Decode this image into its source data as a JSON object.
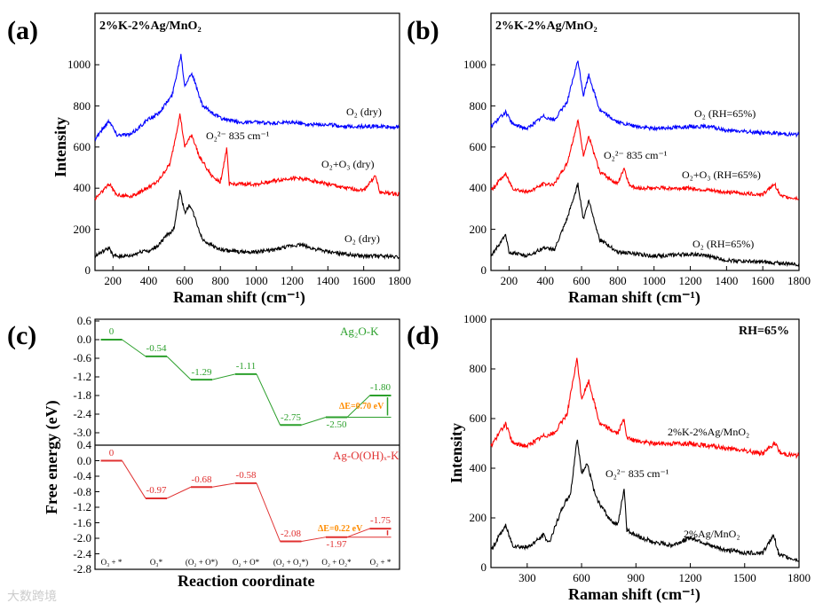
{
  "chart_data": [
    {
      "panel": "(a)",
      "type": "line",
      "title": "2%K-2%Ag/MnO₂",
      "xlabel": "Raman shift (cm⁻¹)",
      "ylabel": "Intensity",
      "xlim": [
        100,
        1800
      ],
      "ylim": [
        0,
        1250
      ],
      "xticks": [
        200,
        400,
        600,
        800,
        1000,
        1200,
        1400,
        1600,
        1800
      ],
      "yticks": [
        0,
        200,
        400,
        600,
        800,
        1000
      ],
      "annotations": [
        "O₂²⁻ 835 cm⁻¹"
      ],
      "series": [
        {
          "name": "O₂ (dry)",
          "color": "#0000ff",
          "x": [
            100,
            180,
            220,
            300,
            390,
            450,
            530,
            580,
            600,
            640,
            700,
            800,
            900,
            1000,
            1100,
            1200,
            1300,
            1400,
            1500,
            1600,
            1700,
            1800
          ],
          "y": [
            640,
            730,
            660,
            660,
            730,
            760,
            850,
            1050,
            900,
            960,
            800,
            740,
            720,
            720,
            715,
            720,
            710,
            710,
            700,
            700,
            700,
            695
          ]
        },
        {
          "name": "O₂+O₃ (dry)",
          "color": "#ff0000",
          "x": [
            100,
            180,
            220,
            300,
            390,
            450,
            520,
            575,
            600,
            640,
            680,
            750,
            800,
            835,
            850,
            900,
            1000,
            1200,
            1300,
            1400,
            1500,
            1600,
            1665,
            1690,
            1800
          ],
          "y": [
            350,
            420,
            370,
            360,
            400,
            430,
            520,
            760,
            600,
            660,
            560,
            460,
            430,
            590,
            420,
            420,
            420,
            450,
            440,
            420,
            400,
            390,
            460,
            380,
            370
          ]
        },
        {
          "name": "O₂ (dry)",
          "color": "#000000",
          "x": [
            100,
            180,
            200,
            300,
            380,
            400,
            450,
            500,
            540,
            575,
            600,
            630,
            660,
            700,
            800,
            900,
            1000,
            1100,
            1200,
            1250,
            1300,
            1400,
            1500,
            1600,
            1700,
            1800
          ],
          "y": [
            70,
            110,
            70,
            70,
            100,
            90,
            120,
            170,
            200,
            390,
            280,
            320,
            250,
            150,
            100,
            90,
            90,
            100,
            120,
            125,
            110,
            90,
            80,
            70,
            70,
            65
          ]
        }
      ]
    },
    {
      "panel": "(b)",
      "type": "line",
      "title": "2%K-2%Ag/MnO₂",
      "xlabel": "Raman shift (cm⁻¹)",
      "ylabel": "",
      "xlim": [
        100,
        1800
      ],
      "ylim": [
        0,
        1250
      ],
      "xticks": [
        200,
        400,
        600,
        800,
        1000,
        1200,
        1400,
        1600,
        1800
      ],
      "yticks": [
        0,
        200,
        400,
        600,
        800,
        1000
      ],
      "annotations": [
        "O₂²⁻ 835 cm⁻¹"
      ],
      "series": [
        {
          "name": "O₂ (RH=65%)",
          "color": "#0000ff",
          "x": [
            100,
            180,
            220,
            300,
            390,
            450,
            520,
            580,
            610,
            640,
            700,
            800,
            900,
            1000,
            1200,
            1300,
            1400,
            1600,
            1800
          ],
          "y": [
            700,
            770,
            710,
            690,
            750,
            730,
            820,
            1020,
            850,
            950,
            780,
            720,
            700,
            690,
            700,
            700,
            680,
            670,
            660
          ]
        },
        {
          "name": "O₂+O₃ (RH=65%)",
          "color": "#ff0000",
          "x": [
            100,
            180,
            220,
            300,
            390,
            450,
            520,
            580,
            610,
            640,
            700,
            800,
            835,
            860,
            900,
            1000,
            1200,
            1400,
            1600,
            1665,
            1700,
            1800
          ],
          "y": [
            390,
            470,
            400,
            380,
            420,
            420,
            520,
            730,
            560,
            650,
            480,
            420,
            500,
            420,
            400,
            400,
            400,
            380,
            370,
            420,
            360,
            350
          ]
        },
        {
          "name": "O₂ (RH=65%)",
          "color": "#000000",
          "x": [
            100,
            180,
            200,
            300,
            390,
            450,
            520,
            580,
            610,
            640,
            700,
            800,
            900,
            1000,
            1200,
            1300,
            1400,
            1600,
            1800
          ],
          "y": [
            70,
            170,
            90,
            70,
            110,
            100,
            250,
            420,
            250,
            340,
            150,
            90,
            80,
            70,
            80,
            70,
            50,
            40,
            30
          ]
        }
      ]
    },
    {
      "panel": "(c)",
      "type": "line",
      "xlabel": "Reaction coordinate",
      "ylabel": "Free energy (eV)",
      "states": [
        "O₃ + *",
        "O₃*",
        "(O₂ + O*)",
        "O₂ + O*",
        "(O₂ + O₂*)",
        "O₂ + O₂*",
        "O₂ + *"
      ],
      "subplots": [
        {
          "name": "Ag₂O-K",
          "color": "#2ca02c",
          "ylim": [
            -3.4,
            0.6
          ],
          "yticks": [
            "0.6",
            "0.0",
            "-0.6",
            "-1.2",
            "-1.8",
            "-2.4",
            "-3.0"
          ],
          "values": [
            0,
            -0.54,
            -1.29,
            -1.11,
            -2.75,
            -2.5,
            -1.8
          ],
          "labels": [
            "0",
            "-0.54",
            "-1.29",
            "-1.11",
            "-2.75",
            "-2.50",
            "-1.80"
          ],
          "delta": "ΔE=0.70 eV"
        },
        {
          "name": "Ag-O(OH)ₓ-K",
          "color": "#e03030",
          "ylim": [
            -2.8,
            0.4
          ],
          "yticks": [
            "0.4",
            "0.0",
            "-0.4",
            "-0.8",
            "-1.2",
            "-1.6",
            "-2.0",
            "-2.4",
            "-2.8"
          ],
          "values": [
            0,
            -0.97,
            -0.68,
            -0.58,
            -2.08,
            -1.97,
            -1.75
          ],
          "labels": [
            "0",
            "-0.97",
            "-0.68",
            "-0.58",
            "-2.08",
            "-1.97",
            "-1.75"
          ],
          "delta": "ΔE=0.22 eV"
        }
      ],
      "delta_color": "#ff8c00"
    },
    {
      "panel": "(d)",
      "type": "line",
      "title": "RH=65%",
      "xlabel": "Raman shift (cm⁻¹)",
      "ylabel": "Intensity",
      "xlim": [
        100,
        1800
      ],
      "ylim": [
        0,
        1000
      ],
      "xticks": [
        300,
        600,
        900,
        1200,
        1500,
        1800
      ],
      "yticks": [
        0,
        200,
        400,
        600,
        800,
        1000
      ],
      "annotations": [
        "O₂²⁻ 835 cm⁻¹"
      ],
      "series": [
        {
          "name": "2%K-2%Ag/MnO₂",
          "color": "#ff0000",
          "x": [
            100,
            180,
            220,
            300,
            390,
            450,
            520,
            575,
            600,
            640,
            700,
            800,
            835,
            850,
            900,
            1000,
            1200,
            1300,
            1400,
            1600,
            1665,
            1700,
            1800
          ],
          "y": [
            490,
            580,
            500,
            490,
            530,
            540,
            620,
            840,
            680,
            750,
            580,
            540,
            600,
            520,
            510,
            500,
            500,
            490,
            480,
            460,
            500,
            460,
            450
          ]
        },
        {
          "name": "2%Ag/MnO₂",
          "color": "#000000",
          "x": [
            100,
            180,
            220,
            300,
            390,
            420,
            500,
            540,
            575,
            600,
            630,
            680,
            750,
            800,
            835,
            850,
            900,
            1000,
            1100,
            1200,
            1250,
            1300,
            1400,
            1500,
            1600,
            1660,
            1690,
            1800
          ],
          "y": [
            70,
            170,
            90,
            80,
            130,
            100,
            250,
            300,
            520,
            380,
            420,
            280,
            200,
            170,
            320,
            150,
            130,
            100,
            90,
            120,
            110,
            90,
            70,
            60,
            60,
            130,
            50,
            30
          ]
        }
      ]
    }
  ],
  "watermark": "大数跨境"
}
